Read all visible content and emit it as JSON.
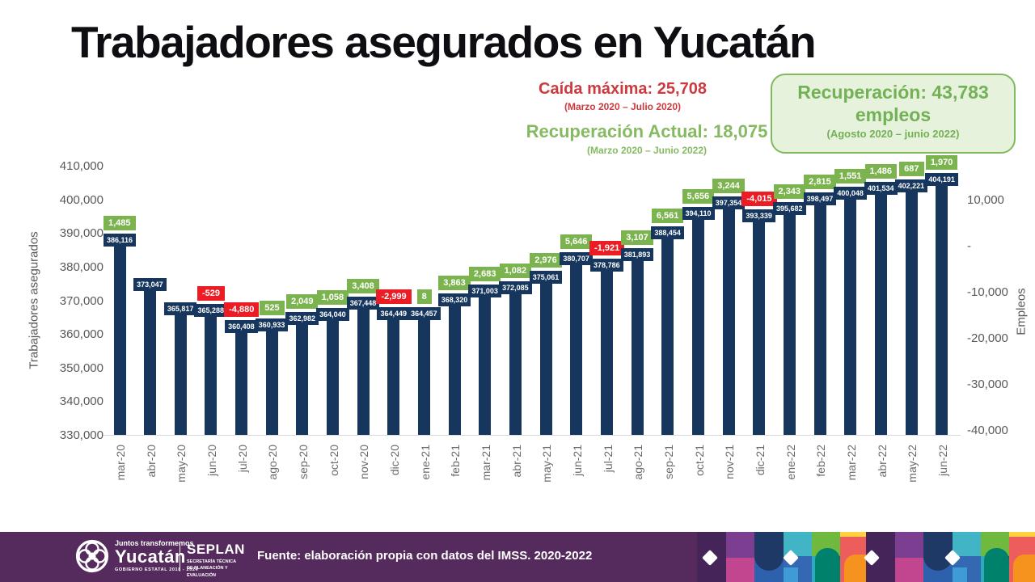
{
  "title": "Trabajadores asegurados en Yucatán",
  "annotations": {
    "caida": {
      "text": "Caída máxima:  25,708",
      "period": "(Marzo 2020 – Julio 2020)"
    },
    "recuperacion_actual": {
      "text": "Recuperación Actual: 18,075",
      "period": "(Marzo 2020 – Junio 2022)"
    },
    "recuperacion_box": {
      "line1": "Recuperación: 43,783",
      "line2": "empleos",
      "period": "(Agosto 2020 – junio 2022)"
    }
  },
  "chart_data": {
    "type": "bar",
    "title": "Trabajadores asegurados en Yucatán",
    "categories": [
      "mar-20",
      "abr-20",
      "may-20",
      "jun-20",
      "jul-20",
      "ago-20",
      "sep-20",
      "oct-20",
      "nov-20",
      "dic-20",
      "ene-21",
      "feb-21",
      "mar-21",
      "abr-21",
      "may-21",
      "jun-21",
      "jul-21",
      "ago-21",
      "sep-21",
      "oct-21",
      "nov-21",
      "dic-21",
      "ene-22",
      "feb-22",
      "mar-22",
      "abr-22",
      "may-22",
      "jun-22"
    ],
    "values": [
      386116,
      373047,
      365817,
      365288,
      360408,
      360933,
      362982,
      364040,
      367448,
      364449,
      364457,
      368320,
      371003,
      372085,
      375061,
      380707,
      378786,
      381893,
      388454,
      394110,
      397354,
      393339,
      395682,
      398497,
      400048,
      401534,
      402221,
      404191
    ],
    "value_labels": [
      "386,116",
      "373,047",
      "365,817",
      "365,288",
      "360,408",
      "360,933",
      "362,982",
      "364,040",
      "367,448",
      "364,449",
      "364,457",
      "368,320",
      "371,003",
      "372,085",
      "375,061",
      "380,707",
      "378,786",
      "381,893",
      "388,454",
      "394,110",
      "397,354",
      "393,339",
      "395,682",
      "398,497",
      "400,048",
      "401,534",
      "402,221",
      "404,191"
    ],
    "changes": [
      1485,
      null,
      null,
      -529,
      -4880,
      525,
      2049,
      1058,
      3408,
      -2999,
      8,
      3863,
      2683,
      1082,
      2976,
      5646,
      -1921,
      3107,
      6561,
      5656,
      3244,
      -4015,
      2343,
      2815,
      1551,
      1486,
      687,
      1970
    ],
    "change_labels": [
      "1,485",
      null,
      null,
      "-529",
      "-4,880",
      "525",
      "2,049",
      "1,058",
      "3,408",
      "-2,999",
      "8",
      "3,863",
      "2,683",
      "1,082",
      "2,976",
      "5,646",
      "-1,921",
      "3,107",
      "6,561",
      "5,656",
      "3,244",
      "-4,015",
      "2,343",
      "2,815",
      "1,551",
      "1,486",
      "687",
      "1,970"
    ],
    "ylabel_left": "Trabajadores asegurados",
    "ylabel_right": "Empleos",
    "ylim_left": [
      330000,
      410000
    ],
    "ylim_right": [
      -40000,
      10000
    ],
    "yticks_left": [
      "410,000",
      "400,000",
      "390,000",
      "380,000",
      "370,000",
      "360,000",
      "350,000",
      "340,000",
      "330,000"
    ],
    "yticks_right": [
      "10,000",
      "-",
      "-10,000",
      "-20,000",
      "-30,000",
      "-40,000"
    ],
    "grid": false,
    "legend": "none",
    "bar_color": "#16365d",
    "positive_color": "#7bb44f",
    "negative_color": "#eb1c24"
  },
  "footer": {
    "brand": {
      "tagline": "Juntos transformemos",
      "name": "Yucatán",
      "subtitle": "GOBIERNO ESTATAL 2018 - 2024"
    },
    "seplan": {
      "name": "SEPLAN",
      "subtitle": "SECRETARÍA TÉCNICA DE PLANEACIÓN Y EVALUACIÓN"
    },
    "source": "Fuente: elaboración propia con datos del IMSS. 2020-2022",
    "background_color": "#552b5d"
  }
}
